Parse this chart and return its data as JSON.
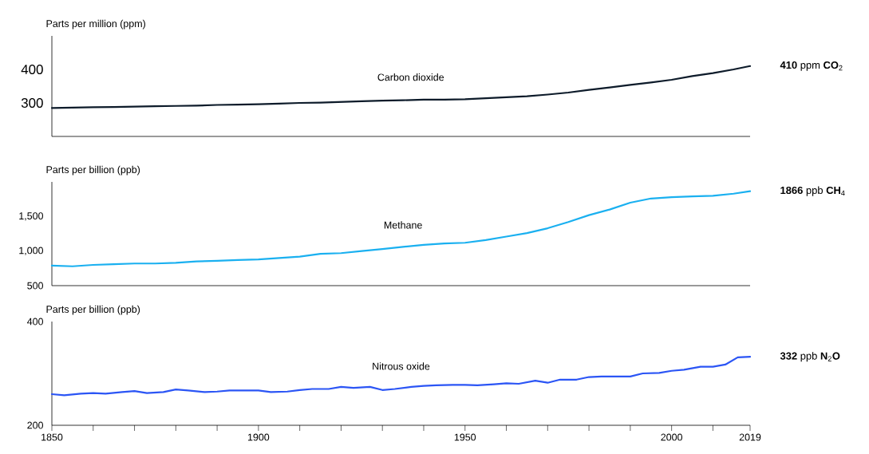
{
  "chart_data": [
    {
      "type": "line",
      "ylabel": "Parts per million (ppm)",
      "xlim": [
        1850,
        2019
      ],
      "ylim": [
        200,
        500
      ],
      "yticks": [
        300,
        400
      ],
      "tick_labels": "y",
      "series": [
        {
          "name": "Carbon dioxide",
          "color": "#0d1b2a",
          "x": [
            1850,
            1855,
            1860,
            1865,
            1870,
            1875,
            1880,
            1885,
            1890,
            1895,
            1900,
            1905,
            1910,
            1915,
            1920,
            1925,
            1930,
            1935,
            1940,
            1945,
            1950,
            1955,
            1960,
            1965,
            1970,
            1975,
            1980,
            1985,
            1990,
            1995,
            2000,
            2005,
            2010,
            2015,
            2019
          ],
          "values": [
            285,
            286,
            287,
            288,
            289,
            290,
            291,
            292,
            294,
            295,
            296,
            298,
            300,
            301,
            303,
            305,
            307,
            308,
            310,
            310,
            311,
            314,
            317,
            320,
            325,
            331,
            339,
            346,
            354,
            361,
            369,
            380,
            389,
            400,
            410
          ]
        }
      ],
      "annotations": [
        "**410** ppm **CO**$_{2}$"
      ]
    },
    {
      "type": "line",
      "ylabel": "Parts per billion (ppb)",
      "xlim": [
        1850,
        2019
      ],
      "ylim": [
        500,
        2000
      ],
      "yticks": [
        500,
        {
          "value": 1000,
          "label": "1,000"
        },
        {
          "value": 1500,
          "label": "1,500"
        }
      ],
      "tick_labels": "y",
      "series": [
        {
          "name": "Methane",
          "color": "#1ab0f0",
          "x": [
            1850,
            1855,
            1860,
            1865,
            1870,
            1875,
            1880,
            1885,
            1890,
            1895,
            1900,
            1905,
            1910,
            1915,
            1920,
            1925,
            1930,
            1935,
            1940,
            1945,
            1950,
            1955,
            1960,
            1965,
            1970,
            1975,
            1980,
            1985,
            1990,
            1995,
            2000,
            2005,
            2010,
            2015,
            2019
          ],
          "values": [
            790,
            780,
            800,
            810,
            820,
            820,
            830,
            850,
            860,
            870,
            880,
            900,
            920,
            960,
            970,
            1000,
            1030,
            1060,
            1090,
            1110,
            1120,
            1160,
            1210,
            1260,
            1330,
            1420,
            1520,
            1600,
            1700,
            1760,
            1780,
            1790,
            1800,
            1830,
            1866
          ]
        }
      ],
      "annotations": [
        "**1866** ppb **CH**$_{4}$"
      ]
    },
    {
      "type": "line",
      "ylabel": "Parts per billion (ppb)",
      "xlim": [
        1850,
        2019
      ],
      "ylim": [
        200,
        400
      ],
      "yticks": [
        200,
        400
      ],
      "xticks": [
        1850,
        {
          "value": 1860,
          "label": null
        },
        {
          "value": 1870,
          "label": null
        },
        {
          "value": 1880,
          "label": null
        },
        {
          "value": 1890,
          "label": null
        },
        1900,
        {
          "value": 1910,
          "label": null
        },
        {
          "value": 1920,
          "label": null
        },
        {
          "value": 1930,
          "label": null
        },
        {
          "value": 1940,
          "label": null
        },
        1950,
        {
          "value": 1960,
          "label": null
        },
        {
          "value": 1970,
          "label": null
        },
        {
          "value": 1980,
          "label": null
        },
        {
          "value": 1990,
          "label": null
        },
        2000,
        {
          "value": 2010,
          "label": null
        },
        2019
      ],
      "series": [
        {
          "name": "Nitrous oxide",
          "color": "#2b55f5",
          "x": [
            1850,
            1853,
            1857,
            1860,
            1863,
            1867,
            1870,
            1873,
            1877,
            1880,
            1883,
            1887,
            1890,
            1893,
            1900,
            1903,
            1907,
            1910,
            1913,
            1917,
            1920,
            1923,
            1927,
            1930,
            1933,
            1937,
            1940,
            1943,
            1947,
            1950,
            1953,
            1957,
            1960,
            1963,
            1967,
            1970,
            1973,
            1977,
            1980,
            1983,
            1987,
            1990,
            1993,
            1997,
            2000,
            2003,
            2007,
            2010,
            2013,
            2016,
            2019
          ],
          "values": [
            260,
            258,
            261,
            262,
            261,
            264,
            266,
            262,
            264,
            269,
            267,
            264,
            265,
            267,
            267,
            264,
            265,
            268,
            270,
            270,
            274,
            272,
            274,
            268,
            270,
            274,
            276,
            277,
            278,
            278,
            277,
            279,
            281,
            280,
            286,
            282,
            288,
            288,
            293,
            294,
            294,
            294,
            300,
            301,
            305,
            307,
            313,
            313,
            317,
            331,
            332
          ]
        }
      ],
      "annotations": [
        "**332** ppb **N**$_{2}$**O**"
      ]
    }
  ]
}
